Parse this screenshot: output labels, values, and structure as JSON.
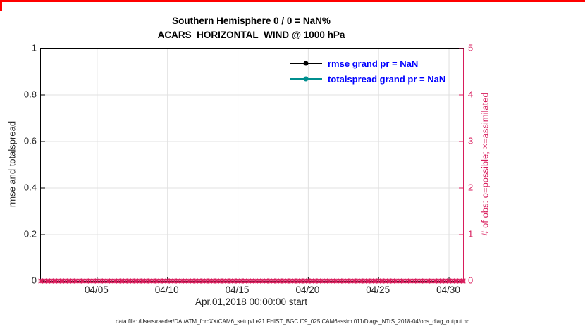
{
  "title": {
    "line1": "Southern Hemisphere 0 / 0 = NaN%",
    "line2": "ACARS_HORIZONTAL_WIND @ 1000 hPa"
  },
  "left_axis": {
    "label": "rmse and totalspread",
    "range": [
      0,
      1
    ],
    "ticks": [
      {
        "label": "0",
        "value": 0
      },
      {
        "label": "0.2",
        "value": 0.2
      },
      {
        "label": "0.4",
        "value": 0.4
      },
      {
        "label": "0.6",
        "value": 0.6
      },
      {
        "label": "0.8",
        "value": 0.8
      },
      {
        "label": "1",
        "value": 1
      }
    ]
  },
  "right_axis": {
    "label": "# of obs: o=possible; ×=assimilated",
    "range": [
      0,
      5
    ],
    "ticks": [
      {
        "label": "0",
        "value": 0
      },
      {
        "label": "1",
        "value": 1
      },
      {
        "label": "2",
        "value": 2
      },
      {
        "label": "3",
        "value": 3
      },
      {
        "label": "4",
        "value": 4
      },
      {
        "label": "5",
        "value": 5
      }
    ]
  },
  "x_axis": {
    "label": "Apr.01,2018 00:00:00 start",
    "range_days": [
      1,
      31
    ],
    "ticks": [
      {
        "label": "04/05",
        "day": 5
      },
      {
        "label": "04/10",
        "day": 10
      },
      {
        "label": "04/15",
        "day": 15
      },
      {
        "label": "04/20",
        "day": 20
      },
      {
        "label": "04/25",
        "day": 25
      },
      {
        "label": "04/30",
        "day": 30
      }
    ]
  },
  "legend": [
    {
      "label": "rmse grand pr = NaN",
      "line_color": "#000000",
      "text_color": "#0000ff"
    },
    {
      "label": "totalspread grand pr = NaN",
      "line_color": "#008f8f",
      "text_color": "#0000ff"
    }
  ],
  "footer": "data file: /Users/raeder/DAI/ATM_forcXX/CAM6_setup/f.e21.FHIST_BGC.f09_025.CAM6assim.011/Diags_NTrS_2018-04/obs_diag_output.nc",
  "colors": {
    "window_border": "#ff0000",
    "grid": "#e0e0e0",
    "axis": "#000000",
    "right_axis": "#d81c5c"
  },
  "chart_data": {
    "type": "line",
    "title": "Southern Hemisphere 0 / 0 = NaN% — ACARS_HORIZONTAL_WIND @ 1000 hPa",
    "xlabel": "Apr.01,2018 00:00:00 start",
    "ylabel_left": "rmse and totalspread",
    "ylabel_right": "# of obs: o=possible; ×=assimilated",
    "ylim_left": [
      0,
      1
    ],
    "ylim_right": [
      0,
      5
    ],
    "x_range": [
      "04/01",
      "05/01"
    ],
    "x_tick_labels": [
      "04/05",
      "04/10",
      "04/15",
      "04/20",
      "04/25",
      "04/30"
    ],
    "grid": true,
    "legend_position": "upper right inside plot, no box",
    "series": [
      {
        "name": "rmse grand pr = NaN",
        "axis": "left",
        "color": "#000000",
        "values": "NaN - no line drawn"
      },
      {
        "name": "totalspread grand pr = NaN",
        "axis": "left",
        "color": "#008f8f",
        "values": "NaN - no line drawn"
      },
      {
        "name": "# of obs possible",
        "axis": "right",
        "marker": "o",
        "color": "#d81c5c",
        "days": 30,
        "points_per_day": 4,
        "constant_value": 0
      },
      {
        "name": "# of obs assimilated",
        "axis": "right",
        "marker": "x",
        "color": "#d81c5c",
        "days": 30,
        "points_per_day": 4,
        "constant_value": 0
      }
    ]
  }
}
